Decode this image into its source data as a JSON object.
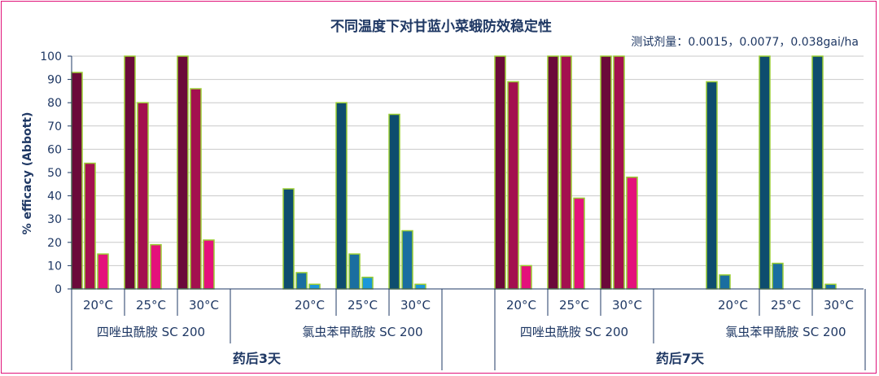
{
  "chart_data": {
    "type": "bar",
    "title": "不同温度下对甘蓝小菜蛾防效稳定性",
    "subtitle": "测试剂量：0.0015，0.0077，0.038gai/ha",
    "ylabel": "% efficacy (Abbott)",
    "ylim": [
      0,
      100
    ],
    "yticks": [
      0,
      10,
      20,
      30,
      40,
      50,
      60,
      70,
      80,
      90,
      100
    ],
    "grid": true,
    "periods": [
      {
        "label": "药后3天",
        "products": [
          {
            "name": "四唑虫酰胺 SC 200",
            "colors": [
              "#6b0a3a",
              "#a3104f",
              "#e4117b"
            ],
            "temps": [
              {
                "label": "20°C",
                "values": [
                  93,
                  54,
                  15
                ]
              },
              {
                "label": "25°C",
                "values": [
                  100,
                  80,
                  19
                ]
              },
              {
                "label": "30°C",
                "values": [
                  100,
                  86,
                  21
                ]
              }
            ]
          },
          {
            "name": "氯虫苯甲酰胺 SC 200",
            "colors": [
              "#0e4d6e",
              "#1a6ea0",
              "#1c97d8"
            ],
            "temps": [
              {
                "label": "20°C",
                "values": [
                  43,
                  7,
                  2
                ]
              },
              {
                "label": "25°C",
                "values": [
                  80,
                  15,
                  5
                ]
              },
              {
                "label": "30°C",
                "values": [
                  75,
                  25,
                  2
                ]
              }
            ]
          }
        ]
      },
      {
        "label": "药后7天",
        "products": [
          {
            "name": "四唑虫酰胺 SC 200",
            "colors": [
              "#6b0a3a",
              "#a3104f",
              "#e4117b"
            ],
            "temps": [
              {
                "label": "20°C",
                "values": [
                  100,
                  89,
                  10
                ]
              },
              {
                "label": "25°C",
                "values": [
                  100,
                  100,
                  39
                ]
              },
              {
                "label": "30°C",
                "values": [
                  100,
                  100,
                  48
                ]
              }
            ]
          },
          {
            "name": "氯虫苯甲酰胺 SC 200",
            "colors": [
              "#0e4d6e",
              "#1a6ea0",
              "#1c97d8"
            ],
            "temps": [
              {
                "label": "20°C",
                "values": [
                  89,
                  6,
                  0
                ]
              },
              {
                "label": "25°C",
                "values": [
                  100,
                  11,
                  0
                ]
              },
              {
                "label": "30°C",
                "values": [
                  100,
                  2,
                  0
                ]
              }
            ]
          }
        ]
      }
    ],
    "bar_outline_color": "#9acd32",
    "text_color": "#1f3864",
    "axis_color": "#1f3864",
    "grid_color": "#c9c9c9"
  }
}
